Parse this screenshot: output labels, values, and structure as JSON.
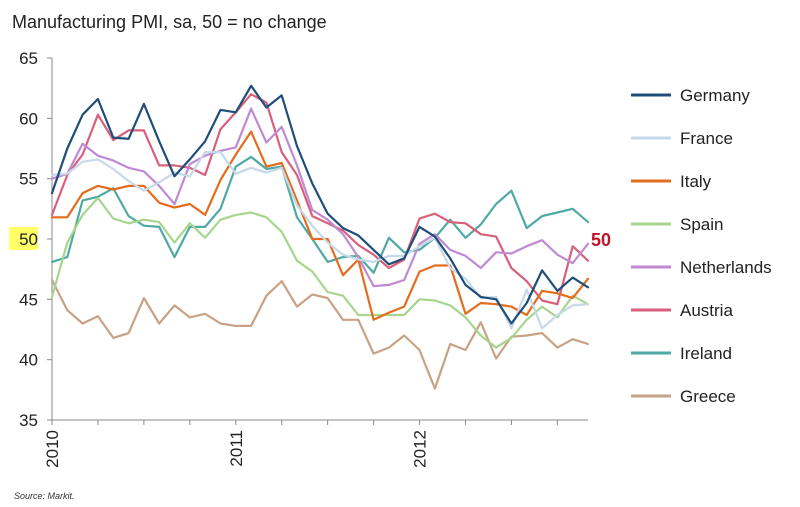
{
  "chart_data": {
    "type": "line",
    "title": "Manufacturing PMI, sa, 50 = no change",
    "source": "Source: Markit.",
    "reference_label": "50",
    "highlighted_tick": "50",
    "highlight_color": "#ffff66",
    "x_ticks": [
      {
        "label": "2010",
        "at": 0
      },
      {
        "label": "2011",
        "at": 12
      },
      {
        "label": "2012",
        "at": 24
      }
    ],
    "x_range": [
      0,
      35
    ],
    "ylim": [
      35,
      65
    ],
    "y_ticks": [
      "35",
      "40",
      "45",
      "50",
      "55",
      "60",
      "65"
    ],
    "grid": false,
    "legend_position": "right",
    "series": [
      {
        "name": "Germany",
        "color": "#1f4e79",
        "values": [
          53.8,
          57.5,
          60.3,
          61.6,
          58.4,
          58.3,
          61.2,
          58.1,
          55.2,
          56.6,
          58.1,
          60.7,
          60.5,
          62.7,
          60.9,
          61.9,
          57.7,
          54.6,
          52.1,
          50.9,
          50.3,
          49.1,
          47.9,
          48.4,
          51.0,
          50.2,
          48.4,
          46.2,
          45.2,
          45.0,
          43.0,
          44.7,
          47.4,
          45.7,
          46.8,
          46.0
        ]
      },
      {
        "name": "France",
        "color": "#c5d9e8",
        "values": [
          55.3,
          55.4,
          56.4,
          56.6,
          55.8,
          54.8,
          54.0,
          54.7,
          55.5,
          55.2,
          57.2,
          57.2,
          55.4,
          55.9,
          55.5,
          55.9,
          52.8,
          51.1,
          49.7,
          48.7,
          48.3,
          48.1,
          48.6,
          48.6,
          49.4,
          50.1,
          47.6,
          46.7,
          45.1,
          45.2,
          42.6,
          45.8,
          42.6,
          43.7,
          44.5,
          44.6
        ]
      },
      {
        "name": "Italy",
        "color": "#e46c1f",
        "values": [
          51.8,
          51.8,
          53.8,
          54.4,
          54.1,
          54.4,
          54.4,
          53.0,
          52.6,
          52.9,
          52.0,
          54.9,
          57.0,
          58.9,
          56.0,
          56.3,
          53.2,
          50.0,
          50.0,
          47.0,
          48.3,
          43.3,
          43.9,
          44.4,
          47.3,
          47.8,
          47.8,
          43.8,
          44.7,
          44.6,
          44.4,
          43.7,
          45.7,
          45.5,
          45.1,
          46.7
        ]
      },
      {
        "name": "Spain",
        "color": "#a6d68d",
        "values": [
          45.2,
          49.7,
          52.0,
          53.4,
          51.7,
          51.3,
          51.6,
          51.4,
          49.7,
          51.3,
          50.1,
          51.6,
          52.0,
          52.2,
          51.8,
          50.6,
          48.2,
          47.3,
          45.6,
          45.3,
          43.7,
          43.7,
          43.7,
          43.7,
          45.0,
          44.9,
          44.5,
          43.5,
          42.0,
          41.0,
          41.8,
          43.3,
          44.4,
          43.5,
          45.3,
          44.6
        ]
      },
      {
        "name": "Netherlands",
        "color": "#c08ad2",
        "values": [
          55.0,
          55.4,
          57.9,
          56.9,
          56.5,
          55.9,
          55.6,
          54.4,
          52.9,
          56.2,
          56.9,
          57.3,
          57.6,
          60.8,
          58.0,
          59.3,
          56.1,
          52.4,
          51.6,
          50.4,
          48.5,
          46.1,
          46.2,
          46.6,
          49.6,
          50.4,
          49.1,
          48.6,
          47.6,
          48.9,
          48.8,
          49.4,
          49.9,
          48.7,
          48.0,
          49.6
        ]
      },
      {
        "name": "Austria",
        "color": "#d9607a",
        "values": [
          52.0,
          55.3,
          57.0,
          60.3,
          58.2,
          59.0,
          59.0,
          56.1,
          56.1,
          55.9,
          55.3,
          59.1,
          60.5,
          62.0,
          61.3,
          57.2,
          55.3,
          51.9,
          51.3,
          50.7,
          49.5,
          48.7,
          47.6,
          48.3,
          51.7,
          52.1,
          51.4,
          51.3,
          50.4,
          50.2,
          47.6,
          46.5,
          44.9,
          44.6,
          49.4,
          48.2
        ]
      },
      {
        "name": "Ireland",
        "color": "#4fa9a5",
        "values": [
          48.1,
          48.5,
          53.2,
          53.5,
          54.2,
          51.9,
          51.1,
          51.0,
          48.5,
          51.0,
          51.0,
          52.5,
          56.0,
          56.8,
          55.8,
          56.0,
          51.8,
          50.0,
          48.1,
          48.5,
          48.6,
          47.2,
          50.1,
          48.9,
          49.1,
          50.1,
          51.6,
          50.1,
          51.2,
          52.9,
          54.0,
          50.9,
          51.9,
          52.2,
          52.5,
          51.4
        ]
      },
      {
        "name": "Greece",
        "color": "#c8a285",
        "values": [
          46.6,
          44.1,
          43.0,
          43.6,
          41.8,
          42.2,
          45.1,
          43.0,
          44.5,
          43.5,
          43.8,
          43.0,
          42.8,
          42.8,
          45.3,
          46.5,
          44.4,
          45.4,
          45.1,
          43.3,
          43.3,
          40.5,
          41.0,
          42.0,
          40.8,
          37.6,
          41.3,
          40.8,
          43.1,
          40.1,
          41.9,
          42.0,
          42.2,
          41.0,
          41.7,
          41.3
        ]
      }
    ]
  }
}
